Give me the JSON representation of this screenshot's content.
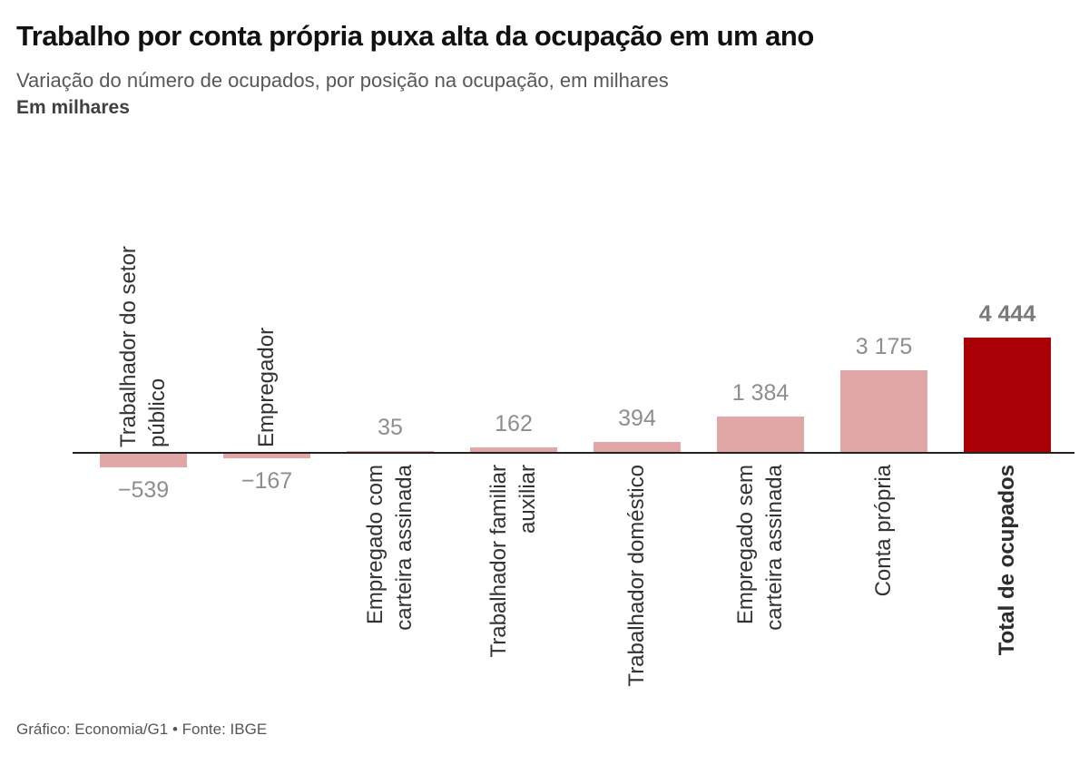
{
  "header": {
    "title": "Trabalho por conta própria puxa alta da ocupação em um ano",
    "subtitle": "Variação do número de ocupados, por posição na ocupação, em milhares",
    "unit_label": "Em milhares"
  },
  "footer": {
    "credit": "Gráfico: Economia/G1 • Fonte: IBGE"
  },
  "colors": {
    "bar": "#e0a7a6",
    "bar_total": "#a90105",
    "axis": "#222222",
    "value_label": "#8e8e8e",
    "value_label_total": "#7b7b7b",
    "category_label": "#333333"
  },
  "chart_data": {
    "type": "bar",
    "title": "Trabalho por conta própria puxa alta da ocupação em um ano",
    "subtitle": "Variação do número de ocupados, por posição na ocupação, em milhares",
    "unit": "milhares",
    "ylim": [
      -539,
      4444
    ],
    "grid": false,
    "legend": "none",
    "x_axis": "categorias de posição na ocupação",
    "categories": [
      "Trabalhador do setor público",
      "Empregador",
      "Empregado com carteira assinada",
      "Trabalhador familiar auxiliar",
      "Trabalhador doméstico",
      "Empregado sem carteira assinada",
      "Conta própria",
      "Total de ocupados"
    ],
    "values": [
      -539,
      -167,
      35,
      162,
      394,
      1384,
      3175,
      4444
    ],
    "items": [
      {
        "category_lines": [
          "Trabalhador do setor",
          "público"
        ],
        "value": -539,
        "value_label": "−539",
        "emphasis": false
      },
      {
        "category_lines": [
          "Empregador"
        ],
        "value": -167,
        "value_label": "−167",
        "emphasis": false
      },
      {
        "category_lines": [
          "Empregado com",
          "carteira assinada"
        ],
        "value": 35,
        "value_label": "35",
        "emphasis": false
      },
      {
        "category_lines": [
          "Trabalhador familiar",
          "auxiliar"
        ],
        "value": 162,
        "value_label": "162",
        "emphasis": false
      },
      {
        "category_lines": [
          "Trabalhador doméstico"
        ],
        "value": 394,
        "value_label": "394",
        "emphasis": false
      },
      {
        "category_lines": [
          "Empregado sem",
          "carteira assinada"
        ],
        "value": 1384,
        "value_label": "1 384",
        "emphasis": false
      },
      {
        "category_lines": [
          "Conta própria"
        ],
        "value": 3175,
        "value_label": "3 175",
        "emphasis": false
      },
      {
        "category_lines": [
          "Total de ocupados"
        ],
        "value": 4444,
        "value_label": "4 444",
        "emphasis": true
      }
    ]
  }
}
